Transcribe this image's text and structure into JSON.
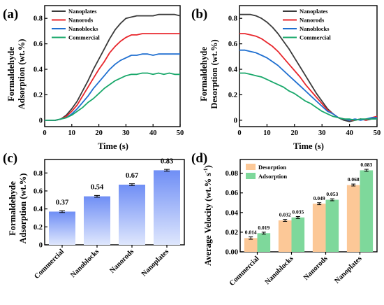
{
  "panels": {
    "a": {
      "label": "(a)",
      "xlabel": "Time (s)",
      "ylabel_lines": [
        "Formaldehyde",
        "Adsorption (wt.%)"
      ]
    },
    "b": {
      "label": "(b)",
      "xlabel": "Time (s)",
      "ylabel_lines": [
        "Formaldehyde",
        "Desorption (wt.%)"
      ]
    },
    "c": {
      "label": "(c)",
      "ylabel_lines": [
        "Formaldehyde",
        "Adsorption (wt.%)"
      ]
    },
    "d": {
      "label": "(d)",
      "ylabel": "Average Velocity (wt.% s",
      "ylabel_sup": "-1",
      "ylabel_close": ")"
    }
  },
  "colors": {
    "Nanoplates": "#3a3a3a",
    "Nanorods": "#e8252b",
    "Nanoblocks": "#1f6fd0",
    "Commercial": "#1aa86b",
    "bar_c_top": "#6f8ef5",
    "bar_c_bottom": "#dfe7fd",
    "desorption": "#fcc897",
    "adsorption": "#7ed89b"
  },
  "chart_data": [
    {
      "panel": "a",
      "type": "line",
      "xlabel": "Time (s)",
      "ylabel": "Formaldehyde Adsorption (wt.%)",
      "xlim": [
        0,
        50
      ],
      "ylim": [
        -0.05,
        0.9
      ],
      "xticks": [
        0,
        10,
        20,
        30,
        40,
        50
      ],
      "yticks": [
        0.0,
        0.2,
        0.4,
        0.6,
        0.8
      ],
      "legend_position": "top-left",
      "series": [
        {
          "name": "Nanoplates",
          "x": [
            0,
            2,
            4,
            6,
            8,
            10,
            12,
            14,
            16,
            18,
            20,
            22,
            24,
            26,
            28,
            30,
            32,
            34,
            36,
            38,
            40,
            42,
            44,
            46,
            48,
            50
          ],
          "y": [
            0.0,
            0.0,
            0.0,
            0.01,
            0.04,
            0.09,
            0.15,
            0.23,
            0.31,
            0.4,
            0.48,
            0.56,
            0.64,
            0.71,
            0.76,
            0.8,
            0.81,
            0.82,
            0.82,
            0.82,
            0.82,
            0.83,
            0.83,
            0.83,
            0.83,
            0.82
          ]
        },
        {
          "name": "Nanorods",
          "x": [
            0,
            2,
            4,
            6,
            8,
            10,
            12,
            14,
            16,
            18,
            20,
            22,
            24,
            26,
            28,
            30,
            32,
            34,
            36,
            38,
            40,
            42,
            44,
            46,
            48,
            50
          ],
          "y": [
            0.0,
            0.0,
            0.0,
            0.01,
            0.03,
            0.07,
            0.12,
            0.19,
            0.26,
            0.33,
            0.4,
            0.46,
            0.53,
            0.58,
            0.62,
            0.65,
            0.67,
            0.67,
            0.68,
            0.68,
            0.68,
            0.68,
            0.68,
            0.68,
            0.68,
            0.68
          ]
        },
        {
          "name": "Nanoblocks",
          "x": [
            0,
            2,
            4,
            6,
            8,
            10,
            12,
            14,
            16,
            18,
            20,
            22,
            24,
            26,
            28,
            30,
            32,
            34,
            36,
            38,
            40,
            42,
            44,
            46,
            48,
            50
          ],
          "y": [
            0.0,
            0.0,
            0.0,
            0.01,
            0.02,
            0.05,
            0.09,
            0.14,
            0.19,
            0.25,
            0.3,
            0.35,
            0.4,
            0.44,
            0.47,
            0.49,
            0.51,
            0.51,
            0.52,
            0.52,
            0.51,
            0.52,
            0.52,
            0.52,
            0.52,
            0.52
          ]
        },
        {
          "name": "Commercial",
          "x": [
            0,
            2,
            4,
            6,
            8,
            10,
            12,
            14,
            16,
            18,
            20,
            22,
            24,
            26,
            28,
            30,
            32,
            34,
            36,
            38,
            40,
            42,
            44,
            46,
            48,
            50
          ],
          "y": [
            0.0,
            0.0,
            0.0,
            0.01,
            0.02,
            0.04,
            0.07,
            0.1,
            0.14,
            0.17,
            0.21,
            0.25,
            0.28,
            0.31,
            0.33,
            0.35,
            0.36,
            0.36,
            0.37,
            0.37,
            0.36,
            0.37,
            0.36,
            0.37,
            0.36,
            0.36
          ]
        }
      ]
    },
    {
      "panel": "b",
      "type": "line",
      "xlabel": "Time (s)",
      "ylabel": "Formaldehyde Desorption (wt.%)",
      "xlim": [
        0,
        50
      ],
      "ylim": [
        -0.05,
        0.9
      ],
      "xticks": [
        0,
        10,
        20,
        30,
        40,
        50
      ],
      "yticks": [
        0.0,
        0.2,
        0.4,
        0.6,
        0.8
      ],
      "legend_position": "top-right",
      "series": [
        {
          "name": "Nanoplates",
          "x": [
            0,
            2,
            4,
            6,
            8,
            10,
            12,
            14,
            16,
            18,
            20,
            22,
            24,
            26,
            28,
            30,
            32,
            34,
            36,
            38,
            40,
            42,
            44,
            46,
            48,
            50
          ],
          "y": [
            0.83,
            0.83,
            0.83,
            0.82,
            0.8,
            0.77,
            0.73,
            0.68,
            0.62,
            0.56,
            0.49,
            0.42,
            0.35,
            0.28,
            0.21,
            0.15,
            0.09,
            0.05,
            0.02,
            0.0,
            -0.01,
            0.0,
            0.01,
            0.0,
            0.01,
            0.02
          ]
        },
        {
          "name": "Nanorods",
          "x": [
            0,
            2,
            4,
            6,
            8,
            10,
            12,
            14,
            16,
            18,
            20,
            22,
            24,
            26,
            28,
            30,
            32,
            34,
            36,
            38,
            40,
            42,
            44,
            46,
            48,
            50
          ],
          "y": [
            0.68,
            0.68,
            0.67,
            0.66,
            0.64,
            0.61,
            0.58,
            0.54,
            0.49,
            0.44,
            0.39,
            0.34,
            0.28,
            0.23,
            0.18,
            0.13,
            0.08,
            0.05,
            0.02,
            0.01,
            0.0,
            0.0,
            0.01,
            0.0,
            0.02,
            0.03
          ]
        },
        {
          "name": "Nanoblocks",
          "x": [
            0,
            2,
            4,
            6,
            8,
            10,
            12,
            14,
            16,
            18,
            20,
            22,
            24,
            26,
            28,
            30,
            32,
            34,
            36,
            38,
            40,
            42,
            44,
            46,
            48,
            50
          ],
          "y": [
            0.55,
            0.55,
            0.54,
            0.53,
            0.51,
            0.49,
            0.46,
            0.43,
            0.39,
            0.35,
            0.31,
            0.27,
            0.23,
            0.19,
            0.15,
            0.11,
            0.07,
            0.05,
            0.02,
            0.01,
            0.0,
            0.01,
            0.0,
            0.01,
            0.02,
            0.02
          ]
        },
        {
          "name": "Commercial",
          "x": [
            0,
            2,
            4,
            6,
            8,
            10,
            12,
            14,
            16,
            18,
            20,
            22,
            24,
            26,
            28,
            30,
            32,
            34,
            36,
            38,
            40,
            42,
            44,
            46,
            48,
            50
          ],
          "y": [
            0.37,
            0.37,
            0.36,
            0.35,
            0.34,
            0.32,
            0.3,
            0.28,
            0.26,
            0.23,
            0.21,
            0.18,
            0.15,
            0.13,
            0.1,
            0.07,
            0.05,
            0.03,
            0.02,
            0.01,
            0.01,
            0.0,
            0.01,
            0.01,
            0.01,
            0.01
          ]
        }
      ]
    },
    {
      "panel": "c",
      "type": "bar",
      "ylabel": "Formaldehyde Adsorption (wt.%)",
      "categories": [
        "Commercial",
        "Nanoblocks",
        "Nanorods",
        "Nanoplates"
      ],
      "values": [
        0.37,
        0.54,
        0.67,
        0.83
      ],
      "errors": [
        0.01,
        0.01,
        0.01,
        0.01
      ],
      "data_labels": [
        "0.37",
        "0.54",
        "0.67",
        "0.83"
      ],
      "ylim": [
        0.0,
        0.95
      ],
      "yticks": [
        0.0,
        0.2,
        0.4,
        0.6,
        0.8
      ]
    },
    {
      "panel": "d",
      "type": "bar",
      "ylabel": "Average Velocity (wt.% s-1)",
      "categories": [
        "Commercial",
        "Nanoblocks",
        "Nanorods",
        "Nanoplates"
      ],
      "ylim": [
        0.0,
        0.094
      ],
      "yticks": [
        0.0,
        0.02,
        0.04,
        0.06,
        0.08
      ],
      "ytick_labels": [
        "0.00",
        "0.02",
        "0.04",
        "0.06",
        "0.08"
      ],
      "legend_position": "top-left",
      "series": [
        {
          "name": "Desorption",
          "values": [
            0.014,
            0.032,
            0.049,
            0.068
          ],
          "errors": [
            0.0012,
            0.001,
            0.001,
            0.001
          ],
          "data_labels": [
            "0.014",
            "0.032",
            "0.049",
            "0.068"
          ]
        },
        {
          "name": "Adsorption",
          "values": [
            0.019,
            0.035,
            0.053,
            0.083
          ],
          "errors": [
            0.001,
            0.001,
            0.001,
            0.001
          ],
          "data_labels": [
            "0.019",
            "0.035",
            "0.053",
            "0.083"
          ]
        }
      ]
    }
  ]
}
